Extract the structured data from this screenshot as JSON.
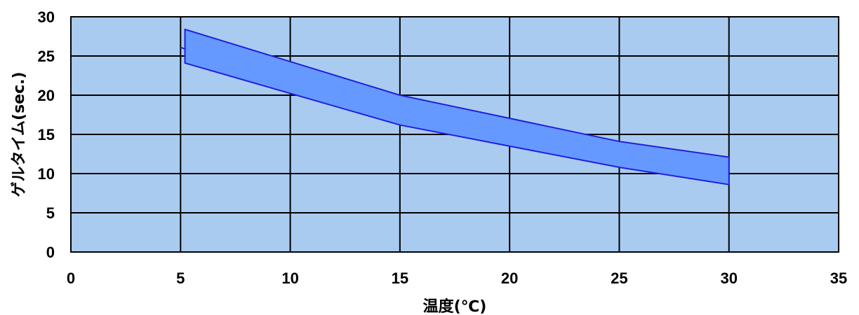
{
  "chart_data": {
    "type": "area",
    "xlabel": "温度(℃)",
    "ylabel": "ゲルタイム(sec.)",
    "xlim": [
      0,
      35
    ],
    "ylim": [
      0,
      30
    ],
    "x_ticks": [
      "0",
      "5",
      "10",
      "15",
      "20",
      "25",
      "30",
      "35"
    ],
    "y_ticks": [
      "0",
      "5",
      "10",
      "15",
      "20",
      "25",
      "30"
    ],
    "grid": true,
    "legend": "none",
    "background_color": "#A9CBF0",
    "band_fill_color": "#6699FF",
    "band_edge_color": "#1F1FE0",
    "band": {
      "x": [
        5.2,
        15,
        25,
        30
      ],
      "upper": [
        28.4,
        20.0,
        14.1,
        12.1
      ],
      "lower": [
        24.1,
        16.2,
        10.8,
        8.6
      ]
    },
    "stub_line": {
      "x": [
        5,
        5.2
      ],
      "y": [
        26.1,
        25.9
      ]
    }
  }
}
